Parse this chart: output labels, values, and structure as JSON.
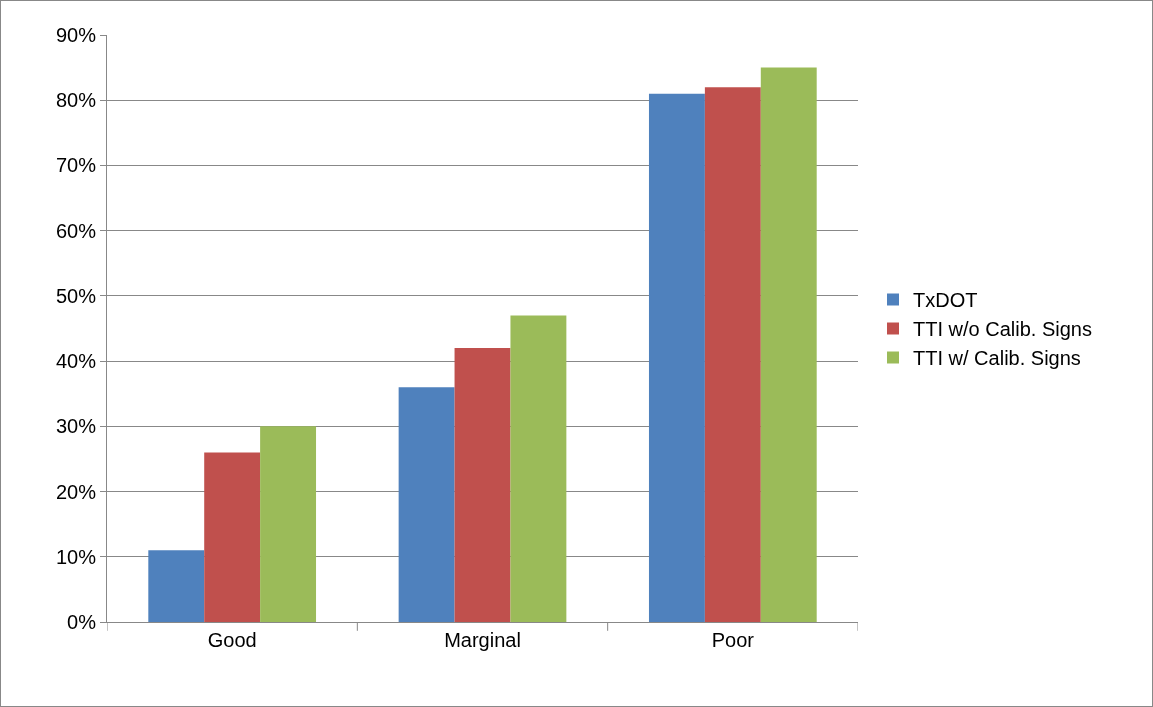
{
  "chart_data": {
    "type": "bar",
    "categories": [
      "Good",
      "Marginal",
      "Poor"
    ],
    "series": [
      {
        "name": "TxDOT",
        "color": "#4f81bd",
        "values": [
          11,
          36,
          81
        ]
      },
      {
        "name": "TTI w/o Calib. Signs",
        "color": "#c0504d",
        "values": [
          26,
          42,
          82
        ]
      },
      {
        "name": "TTI w/ Calib. Signs",
        "color": "#9bbb59",
        "values": [
          30,
          47,
          85
        ]
      }
    ],
    "ylim": [
      0,
      90
    ],
    "yticks": [
      {
        "value": 0,
        "label": "0%"
      },
      {
        "value": 10,
        "label": "10%"
      },
      {
        "value": 20,
        "label": "20%"
      },
      {
        "value": 30,
        "label": "30%"
      },
      {
        "value": 40,
        "label": "40%"
      },
      {
        "value": 50,
        "label": "50%"
      },
      {
        "value": 60,
        "label": "60%"
      },
      {
        "value": 70,
        "label": "70%"
      },
      {
        "value": 80,
        "label": "80%"
      },
      {
        "value": 90,
        "label": "90%"
      }
    ],
    "grid": "y",
    "legend": "right"
  }
}
